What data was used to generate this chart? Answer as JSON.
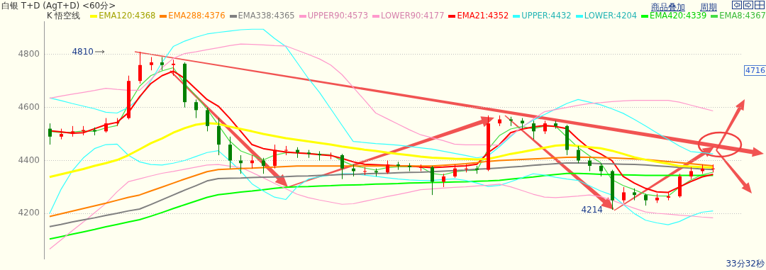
{
  "chart_data": {
    "type": "candlestick",
    "title": "白银 T+D (AgT+D) <60分>",
    "legend_title": "K 悟空线",
    "categories": [
      null,
      null,
      null,
      null,
      null,
      null,
      null,
      null,
      null,
      null,
      null,
      null,
      null,
      null,
      null,
      null,
      null,
      null,
      null,
      null,
      null,
      null,
      null,
      null,
      null,
      null,
      null,
      null,
      null,
      null,
      null,
      null,
      null,
      null,
      null,
      null,
      null,
      null,
      null,
      null,
      null,
      null,
      null,
      null,
      null,
      null,
      null,
      null,
      null,
      null,
      null,
      null,
      null,
      null,
      null,
      null,
      null,
      null,
      null,
      null,
      null,
      null
    ],
    "ylim": [
      4030,
      4925
    ],
    "yticks": [
      4200,
      4400,
      4600,
      4800
    ],
    "grid": "y",
    "tick_labels": "y",
    "legend": "top",
    "marker": "none",
    "line_style": "solid",
    "annotations": [
      "4810",
      "4214",
      "4716",
      "商品叠加",
      "周期",
      "33分32秒"
    ],
    "series": [
      {
        "type": "line",
        "name": "EMA120:4368",
        "color": "#ffff00",
        "values": [
          4338,
          4348,
          4358,
          4368,
          4380,
          4390,
          4402,
          4420,
          4442,
          4465,
          4483,
          4505,
          4522,
          4535,
          4541,
          4538,
          4528,
          4519,
          4510,
          4500,
          4492,
          4484,
          4478,
          4472,
          4466,
          4460,
          4453,
          4447,
          4441,
          4436,
          4430,
          4425,
          4420,
          4415,
          4411,
          4409,
          4407,
          4406,
          4404,
          4406,
          4415,
          4425,
          4432,
          4440,
          4448,
          4456,
          4459,
          4455,
          4450,
          4446,
          4437,
          4425,
          4412,
          4403,
          4395,
          4388,
          4379,
          4377,
          4375,
          4373,
          null,
          null
        ]
      },
      {
        "type": "line",
        "name": "EMA288:4376",
        "color": "#ff8000",
        "values": [
          4189,
          4199,
          4209,
          4219,
          4229,
          4239,
          4250,
          4261,
          4270,
          4285,
          4300,
          4315,
          4330,
          4344,
          4358,
          4366,
          4368,
          4370,
          4371,
          4373,
          4375,
          4377,
          4379,
          4379,
          4379,
          4379,
          4379,
          4379,
          4379,
          4379,
          4379,
          4379,
          4379,
          4379,
          4379,
          4382,
          4385,
          4388,
          4392,
          4397,
          4400,
          4402,
          4404,
          4406,
          4408,
          4410,
          4412,
          4413,
          4412,
          4411,
          4410,
          4408,
          4406,
          4404,
          4400,
          4396,
          4392,
          4388,
          4384,
          4380,
          null,
          null
        ]
      },
      {
        "type": "line",
        "name": "EMA338:4365",
        "color": "#808080",
        "values": [
          4151,
          4159,
          4168,
          4176,
          4184,
          4193,
          4201,
          4210,
          4217,
          4234,
          4252,
          4270,
          4288,
          4305,
          4323,
          4332,
          4333,
          4334,
          4336,
          4337,
          4338,
          4339,
          4341,
          4342,
          4344,
          4345,
          4347,
          4348,
          4350,
          4351,
          4352,
          4354,
          4355,
          4356,
          4358,
          4360,
          4362,
          4364,
          4367,
          4369,
          4372,
          4375,
          4378,
          4382,
          4385,
          4388,
          4391,
          4391,
          4390,
          4388,
          4387,
          4386,
          4385,
          4383,
          4380,
          4377,
          4374,
          4371,
          4368,
          4366,
          null,
          null
        ]
      },
      {
        "type": "line",
        "name": "UPPER90:4573",
        "color": "#ff99cc",
        "values": [
          4635,
          4643,
          4650,
          4657,
          4664,
          4672,
          4668,
          4665,
          4665,
          4705,
          4750,
          4785,
          4803,
          4810,
          4818,
          4825,
          4833,
          4839,
          4838,
          4836,
          4833,
          4832,
          4816,
          4800,
          4783,
          4760,
          4724,
          4676,
          4628,
          4579,
          4558,
          4537,
          4516,
          4497,
          4486,
          4475,
          4462,
          4459,
          4459,
          4459,
          4458,
          4494,
          4525,
          4556,
          4584,
          4592,
          4600,
          4608,
          4615,
          4618,
          4622,
          4625,
          4627,
          4627,
          4627,
          4627,
          4620,
          4609,
          4598,
          4587,
          null,
          null
        ]
      },
      {
        "type": "line",
        "name": "LOWER90:4177",
        "color": "#ff99cc",
        "values": [
          4066,
          4100,
          4135,
          4168,
          4203,
          4238,
          4282,
          4320,
          4331,
          4342,
          4352,
          4359,
          4367,
          4375,
          4383,
          4385,
          4379,
          4374,
          4355,
          4335,
          4314,
          4294,
          4273,
          4260,
          4251,
          4243,
          4235,
          4237,
          4246,
          4255,
          4264,
          4272,
          4281,
          4290,
          4293,
          4296,
          4299,
          4301,
          4304,
          4307,
          4311,
          4301,
          4287,
          4273,
          4262,
          4260,
          4263,
          4266,
          4270,
          4264,
          4250,
          4235,
          4220,
          4206,
          4201,
          4198,
          4194,
          4191,
          4187,
          4184,
          null,
          null
        ]
      },
      {
        "type": "line",
        "name": "EMA21:4352",
        "color": "#ff0000",
        "values": [
          4512,
          4508,
          4503,
          4505,
          4520,
          4535,
          4544,
          4580,
          4640,
          4690,
          4720,
          4737,
          4710,
          4670,
          4630,
          4605,
          4560,
          4510,
          4460,
          4445,
          4438,
          4432,
          4429,
          4426,
          4422,
          4419,
          4408,
          4395,
          4386,
          4384,
          4382,
          4380,
          4379,
          4376,
          4373,
          4375,
          4378,
          4380,
          4386,
          4430,
          4460,
          4505,
          4518,
          4526,
          4532,
          4528,
          4520,
          4480,
          4445,
          4425,
          4400,
          4340,
          4315,
          4295,
          4282,
          4280,
          4300,
          4320,
          4338,
          4348,
          null,
          null
        ]
      },
      {
        "type": "line",
        "name": "UPPER:4432",
        "color": "#33ffff",
        "values": [
          4636,
          4626,
          4615,
          4605,
          4595,
          4582,
          4579,
          4600,
          4635,
          4700,
          4770,
          4830,
          4850,
          4865,
          4877,
          4883,
          4888,
          4893,
          4895,
          4895,
          4860,
          4830,
          4770,
          4710,
          4657,
          4595,
          4533,
          4472,
          4468,
          4464,
          4461,
          4458,
          4453,
          4448,
          4443,
          4435,
          4427,
          4419,
          4410,
          4418,
          4452,
          4490,
          4527,
          4552,
          4573,
          4594,
          4615,
          4630,
          4620,
          4610,
          4595,
          4578,
          4555,
          4530,
          4504,
          4480,
          4455,
          4434,
          4430,
          4425,
          null,
          null
        ]
      },
      {
        "type": "line",
        "name": "LOWER:4204",
        "color": "#33ffff",
        "values": [
          4200,
          4290,
          4360,
          4410,
          4445,
          4460,
          4462,
          4420,
          4395,
          4385,
          4383,
          4390,
          4400,
          4415,
          4430,
          4437,
          4400,
          4360,
          4312,
          4285,
          4262,
          4253,
          4300,
          4330,
          4339,
          4345,
          4350,
          4350,
          4345,
          4340,
          4335,
          4330,
          4327,
          4325,
          4325,
          4328,
          4331,
          4325,
          4315,
          4302,
          4306,
          4320,
          4335,
          4350,
          4345,
          4337,
          4330,
          4325,
          4305,
          4285,
          4270,
          4235,
          4200,
          4175,
          4165,
          4158,
          4170,
          4190,
          4205,
          4210,
          null,
          null
        ]
      },
      {
        "type": "line",
        "name": "EMA420:4339",
        "color": "#00ff00",
        "values": [
          4104,
          4113,
          4122,
          4131,
          4140,
          4150,
          4159,
          4168,
          4177,
          4190,
          4204,
          4219,
          4233,
          4247,
          4261,
          4271,
          4276,
          4281,
          4285,
          4290,
          4295,
          4299,
          4301,
          4302,
          4304,
          4305,
          4307,
          4308,
          4309,
          4311,
          4312,
          4313,
          4315,
          4316,
          4317,
          4318,
          4319,
          4320,
          4322,
          4323,
          4325,
          4330,
          4334,
          4338,
          4343,
          4347,
          4351,
          4351,
          4350,
          4348,
          4347,
          4346,
          4345,
          4344,
          4344,
          4344,
          4344,
          4344,
          4344,
          4344,
          null,
          null
        ]
      },
      {
        "type": "line",
        "name": "EMA8:4367",
        "color": "#44dd44",
        "values": [
          4510,
          4505,
          4507,
          4511,
          4510,
          4523,
          4532,
          4610,
          4680,
          4720,
          4738,
          4750,
          4690,
          4645,
          4594,
          4534,
          4474,
          4436,
          4420,
          4402,
          4420,
          4429,
          4429,
          4427,
          4424,
          4422,
          4399,
          4381,
          4372,
          4364,
          4373,
          4376,
          4376,
          4376,
          4351,
          4346,
          4357,
          4362,
          4363,
          4443,
          4494,
          4519,
          4528,
          4520,
          4529,
          4529,
          4489,
          4449,
          4418,
          4392,
          4328,
          4306,
          4290,
          4272,
          4267,
          4266,
          4299,
          4326,
          4346,
          4356,
          null,
          null
        ]
      },
      {
        "type": "candlestick",
        "ohlc": [
          [
            4520,
            4540,
            4460,
            4490
          ],
          [
            4490,
            4520,
            4480,
            4500
          ],
          [
            4500,
            4530,
            4490,
            4510
          ],
          [
            4510,
            4530,
            4495,
            4515
          ],
          [
            4515,
            4525,
            4495,
            4510
          ],
          [
            4510,
            4560,
            4505,
            4540
          ],
          [
            4540,
            4560,
            4530,
            4545
          ],
          [
            4560,
            4720,
            4555,
            4700
          ],
          [
            4700,
            4810,
            4690,
            4760
          ],
          [
            4760,
            4790,
            4740,
            4770
          ],
          [
            4770,
            4790,
            4740,
            4760
          ],
          [
            4760,
            4780,
            4720,
            4765
          ],
          [
            4765,
            4770,
            4600,
            4620
          ],
          [
            4620,
            4630,
            4560,
            4590
          ],
          [
            4590,
            4600,
            4510,
            4530
          ],
          [
            4530,
            4560,
            4420,
            4460
          ],
          [
            4460,
            4490,
            4370,
            4400
          ],
          [
            4400,
            4420,
            4350,
            4390
          ],
          [
            4390,
            4420,
            4370,
            4400
          ],
          [
            4400,
            4410,
            4350,
            4380
          ],
          [
            4380,
            4460,
            4370,
            4440
          ],
          [
            4440,
            4455,
            4420,
            4440
          ],
          [
            4440,
            4450,
            4410,
            4430
          ],
          [
            4430,
            4440,
            4410,
            4425
          ],
          [
            4425,
            4435,
            4400,
            4420
          ],
          [
            4420,
            4430,
            4405,
            4420
          ],
          [
            4420,
            4425,
            4330,
            4370
          ],
          [
            4370,
            4385,
            4340,
            4360
          ],
          [
            4360,
            4375,
            4345,
            4360
          ],
          [
            4360,
            4370,
            4340,
            4355
          ],
          [
            4355,
            4400,
            4350,
            4385
          ],
          [
            4385,
            4395,
            4365,
            4380
          ],
          [
            4380,
            4390,
            4360,
            4375
          ],
          [
            4375,
            4385,
            4360,
            4375
          ],
          [
            4375,
            4380,
            4270,
            4320
          ],
          [
            4320,
            4350,
            4300,
            4340
          ],
          [
            4340,
            4385,
            4335,
            4370
          ],
          [
            4370,
            4385,
            4355,
            4370
          ],
          [
            4370,
            4380,
            4350,
            4365
          ],
          [
            4365,
            4570,
            4360,
            4540
          ],
          [
            4540,
            4570,
            4530,
            4555
          ],
          [
            4555,
            4565,
            4530,
            4550
          ],
          [
            4550,
            4560,
            4520,
            4540
          ],
          [
            4540,
            4550,
            4480,
            4510
          ],
          [
            4510,
            4550,
            4500,
            4540
          ],
          [
            4540,
            4550,
            4520,
            4530
          ],
          [
            4530,
            4535,
            4420,
            4440
          ],
          [
            4440,
            4455,
            4390,
            4400
          ],
          [
            4400,
            4410,
            4360,
            4380
          ],
          [
            4380,
            4390,
            4340,
            4360
          ],
          [
            4360,
            4365,
            4214,
            4250
          ],
          [
            4250,
            4300,
            4240,
            4280
          ],
          [
            4280,
            4295,
            4250,
            4270
          ],
          [
            4270,
            4275,
            4230,
            4250
          ],
          [
            4250,
            4275,
            4240,
            4260
          ],
          [
            4260,
            4280,
            4250,
            4265
          ],
          [
            4265,
            4350,
            4260,
            4340
          ],
          [
            4340,
            4375,
            4330,
            4360
          ],
          [
            4360,
            4385,
            4350,
            4370
          ],
          [
            4370,
            4385,
            4355,
            4370
          ],
          null,
          null
        ],
        "colors": [
          "#008000",
          "#ff0000",
          "#ff0000",
          "#ff0000",
          "#008000",
          "#ff0000",
          "#ff0000",
          "#ff0000",
          "#ff0000",
          "#ff0000",
          "#008000",
          "#ff0000",
          "#008000",
          "#008000",
          "#008000",
          "#008000",
          "#008000",
          "#008000",
          "#ff0000",
          "#008000",
          "#ff0000",
          "#ff0000",
          "#008000",
          "#008000",
          "#008000",
          "#ff0000",
          "#008000",
          "#008000",
          "#ff0000",
          "#008000",
          "#ff0000",
          "#008000",
          "#008000",
          "#ff0000",
          "#008000",
          "#ff0000",
          "#ff0000",
          "#ff0000",
          "#008000",
          "#ff0000",
          "#ff0000",
          "#008000",
          "#008000",
          "#008000",
          "#ff0000",
          "#008000",
          "#008000",
          "#008000",
          "#008000",
          "#008000",
          "#008000",
          "#ff0000",
          "#008000",
          "#008000",
          "#ff0000",
          "#ff0000",
          "#ff0000",
          "#ff0000",
          "#ff0000",
          "#ff0000",
          null,
          null
        ]
      }
    ]
  }
}
